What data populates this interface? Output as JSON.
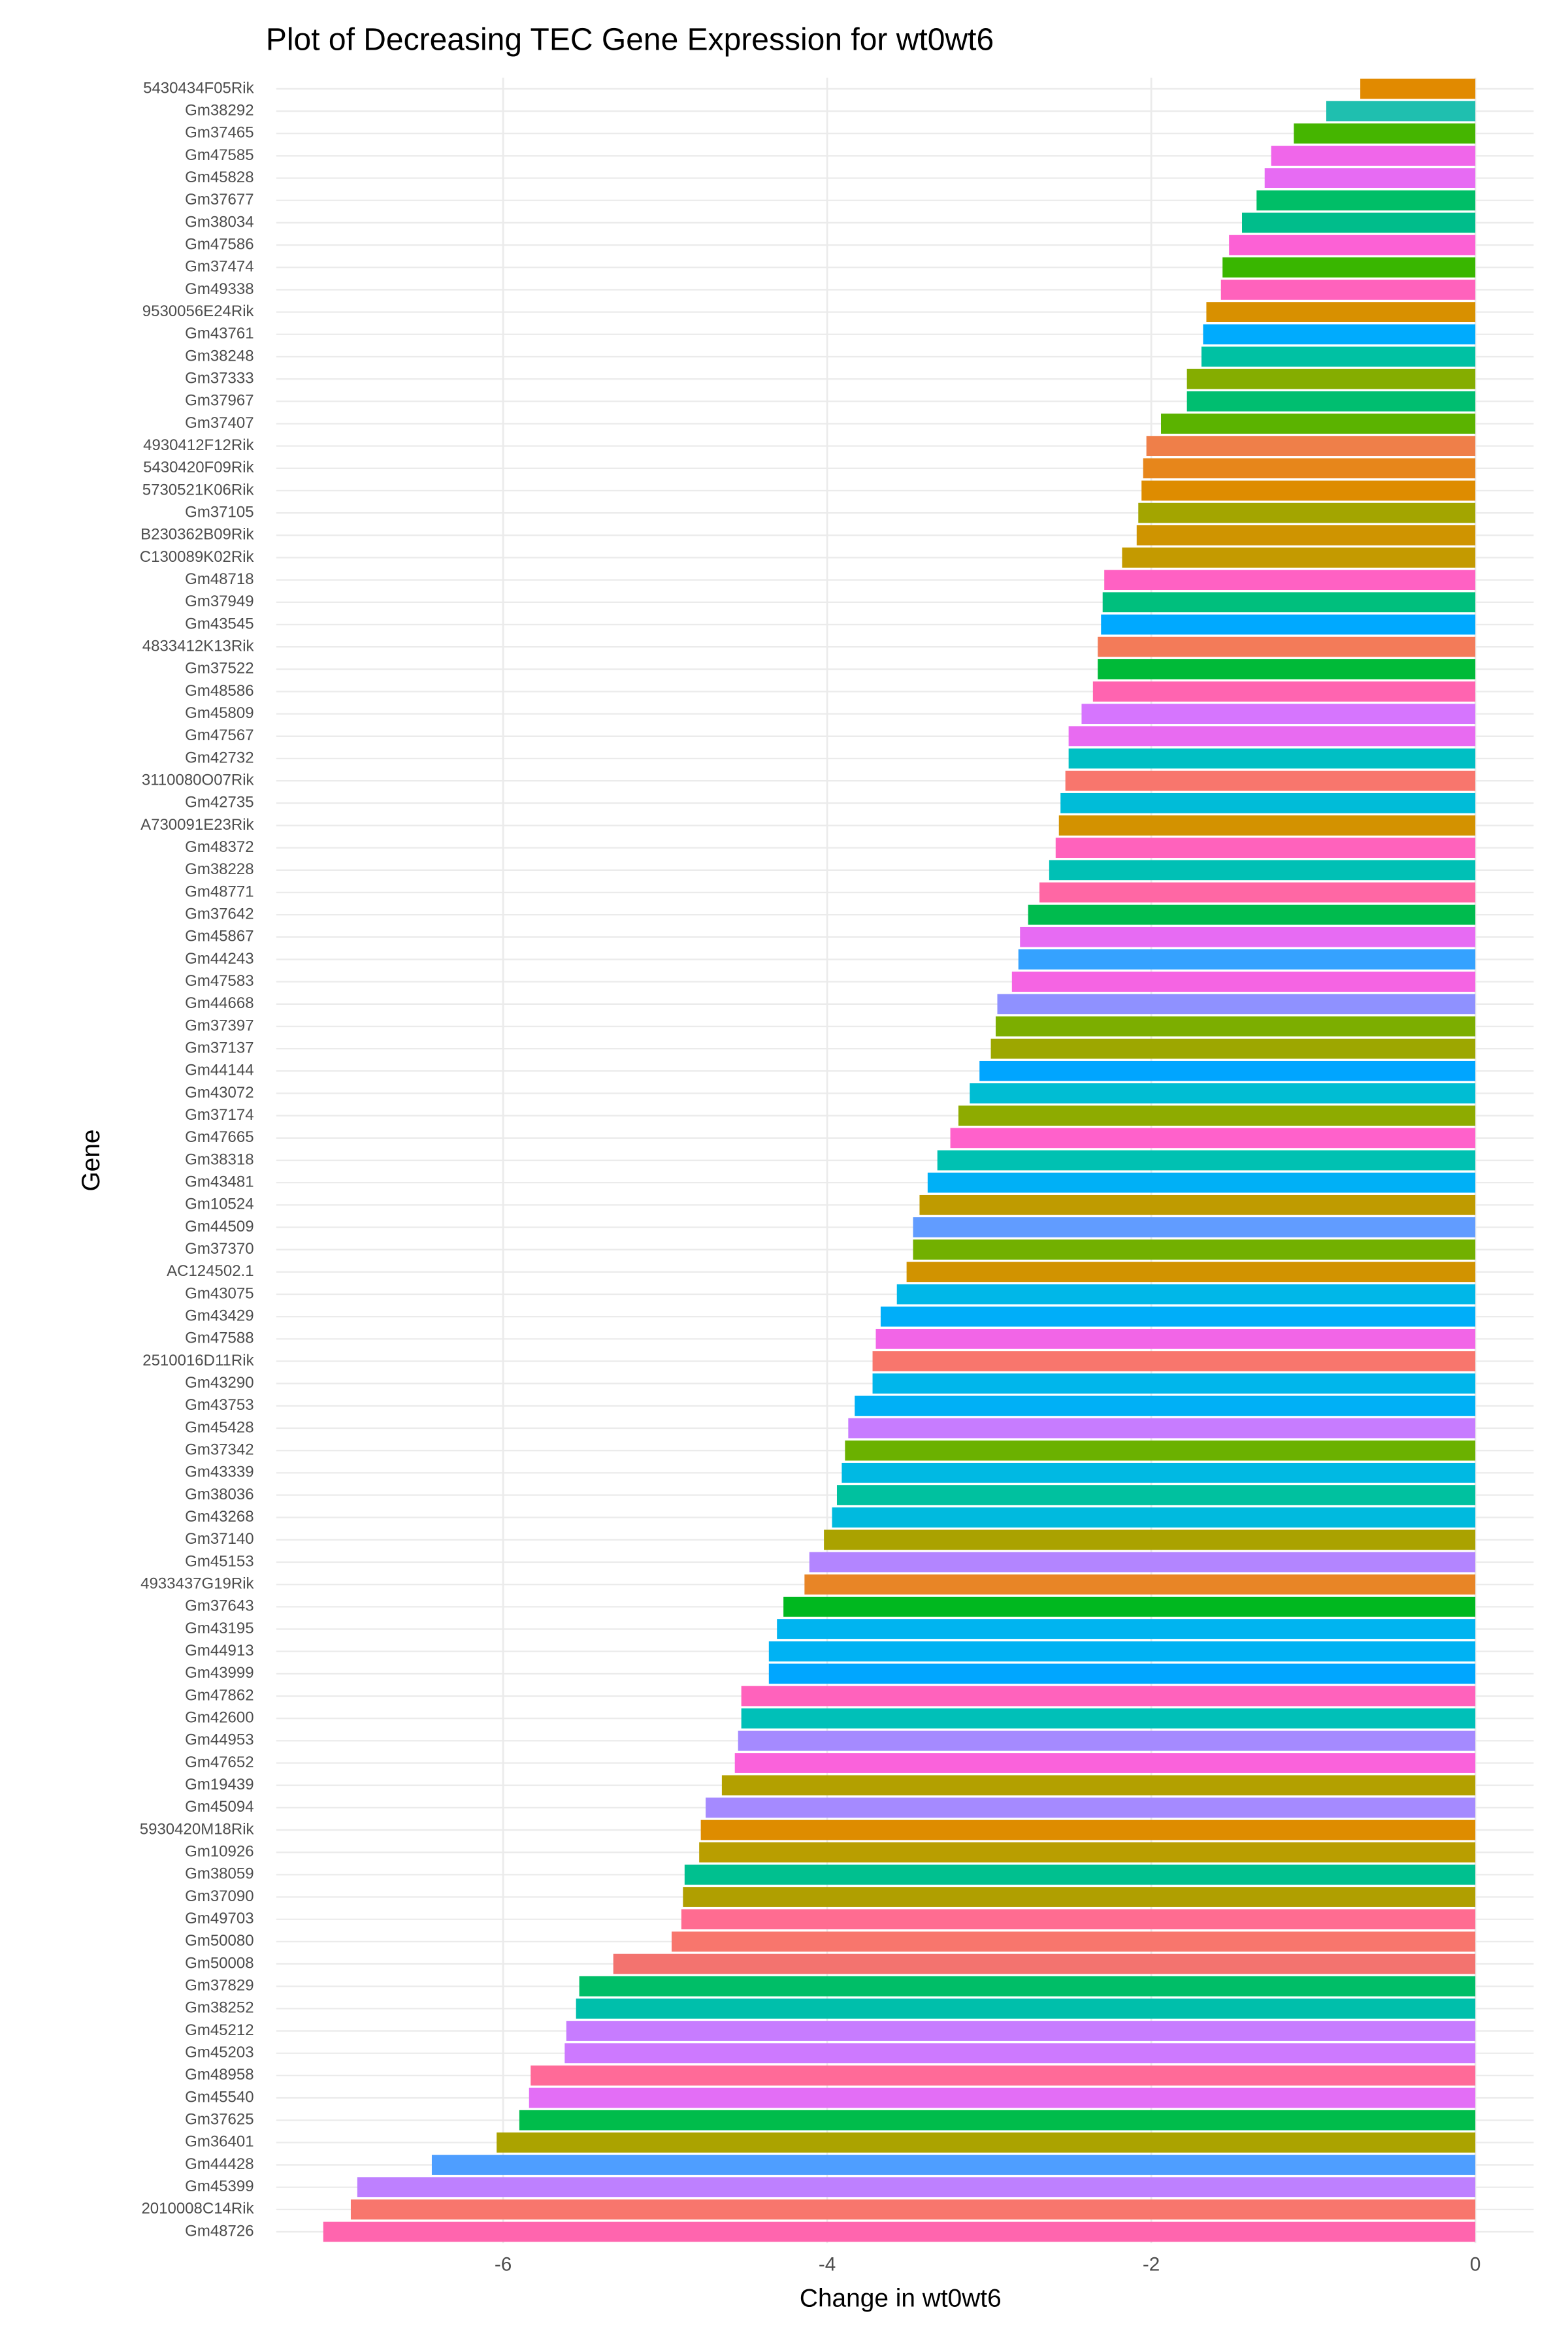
{
  "chart_data": {
    "type": "barh",
    "title": "Plot of Decreasing TEC Gene Expression for wt0wt6",
    "x_label": "Change in wt0wt6",
    "y_label": "Gene",
    "categories": [
      "5430434F05Rik",
      "Gm38292",
      "Gm37465",
      "Gm47585",
      "Gm45828",
      "Gm37677",
      "Gm38034",
      "Gm47586",
      "Gm37474",
      "Gm49338",
      "9530056E24Rik",
      "Gm43761",
      "Gm38248",
      "Gm37333",
      "Gm37967",
      "Gm37407",
      "4930412F12Rik",
      "5430420F09Rik",
      "5730521K06Rik",
      "Gm37105",
      "B230362B09Rik",
      "C130089K02Rik",
      "Gm48718",
      "Gm37949",
      "Gm43545",
      "4833412K13Rik",
      "Gm37522",
      "Gm48586",
      "Gm45809",
      "Gm47567",
      "Gm42732",
      "3110080O07Rik",
      "Gm42735",
      "A730091E23Rik",
      "Gm48372",
      "Gm38228",
      "Gm48771",
      "Gm37642",
      "Gm45867",
      "Gm44243",
      "Gm47583",
      "Gm44668",
      "Gm37397",
      "Gm37137",
      "Gm44144",
      "Gm43072",
      "Gm37174",
      "Gm47665",
      "Gm38318",
      "Gm43481",
      "Gm10524",
      "Gm44509",
      "Gm37370",
      "AC124502.1",
      "Gm43075",
      "Gm43429",
      "Gm47588",
      "2510016D11Rik",
      "Gm43290",
      "Gm43753",
      "Gm45428",
      "Gm37342",
      "Gm43339",
      "Gm38036",
      "Gm43268",
      "Gm37140",
      "Gm45153",
      "4933437G19Rik",
      "Gm37643",
      "Gm43195",
      "Gm44913",
      "Gm43999",
      "Gm47862",
      "Gm42600",
      "Gm44953",
      "Gm47652",
      "Gm19439",
      "Gm45094",
      "5930420M18Rik",
      "Gm10926",
      "Gm38059",
      "Gm37090",
      "Gm49703",
      "Gm50080",
      "Gm50008",
      "Gm37829",
      "Gm38252",
      "Gm45212",
      "Gm45203",
      "Gm48958",
      "Gm45540",
      "Gm37625",
      "Gm36401",
      "Gm44428",
      "Gm45399",
      "2010008C14Rik",
      "Gm48726"
    ],
    "values": [
      -0.71,
      -0.92,
      -1.12,
      -1.26,
      -1.3,
      -1.35,
      -1.44,
      -1.52,
      -1.56,
      -1.57,
      -1.66,
      -1.68,
      -1.69,
      -1.78,
      -1.78,
      -1.94,
      -2.03,
      -2.05,
      -2.06,
      -2.08,
      -2.09,
      -2.18,
      -2.29,
      -2.3,
      -2.31,
      -2.33,
      -2.33,
      -2.36,
      -2.43,
      -2.51,
      -2.51,
      -2.53,
      -2.56,
      -2.57,
      -2.59,
      -2.63,
      -2.69,
      -2.76,
      -2.81,
      -2.82,
      -2.86,
      -2.95,
      -2.96,
      -2.99,
      -3.06,
      -3.12,
      -3.19,
      -3.24,
      -3.32,
      -3.38,
      -3.43,
      -3.47,
      -3.47,
      -3.51,
      -3.57,
      -3.67,
      -3.7,
      -3.72,
      -3.72,
      -3.83,
      -3.87,
      -3.89,
      -3.91,
      -3.94,
      -3.97,
      -4.02,
      -4.11,
      -4.14,
      -4.27,
      -4.31,
      -4.36,
      -4.36,
      -4.53,
      -4.53,
      -4.55,
      -4.57,
      -4.65,
      -4.75,
      -4.78,
      -4.79,
      -4.88,
      -4.89,
      -4.9,
      -4.96,
      -5.32,
      -5.53,
      -5.55,
      -5.61,
      -5.62,
      -5.83,
      -5.84,
      -5.9,
      -6.04,
      -6.44,
      -6.9,
      -6.94,
      -7.11
    ],
    "colors": [
      "#E18A00",
      "#1FBFAF",
      "#45B500",
      "#F066EA",
      "#E76BF3",
      "#00BE67",
      "#00BD8B",
      "#FC61D5",
      "#39B600",
      "#FF62BC",
      "#D89000",
      "#00ABFD",
      "#00C1A3",
      "#85AD00",
      "#00BE70",
      "#5BB300",
      "#EF7F49",
      "#E7861B",
      "#DE8C00",
      "#A3A500",
      "#CF9400",
      "#C49A00",
      "#FF61C3",
      "#00BF7D",
      "#00A9FF",
      "#F37B59",
      "#00BA38",
      "#FF64B0",
      "#D675FE",
      "#E86BF1",
      "#00BFC4",
      "#F8766D",
      "#00BCD8",
      "#D39200",
      "#FF62BC",
      "#00C0B5",
      "#FF67A4",
      "#00BB4E",
      "#E76BF3",
      "#35A2FF",
      "#F564E3",
      "#8F91FF",
      "#7CAE00",
      "#9DA700",
      "#00A5FF",
      "#00BDD3",
      "#8EAB00",
      "#FF61CB",
      "#00C1B2",
      "#00B0F6",
      "#BF9B00",
      "#619CFF",
      "#72B000",
      "#D19300",
      "#00B7E8",
      "#00AEF9",
      "#F265E7",
      "#F8766D",
      "#00B6EB",
      "#00B0F6",
      "#C77CFF",
      "#6BB100",
      "#00B9E3",
      "#00C19F",
      "#00BADE",
      "#AAA200",
      "#B385FF",
      "#E88526",
      "#00B81F",
      "#00B4F0",
      "#00B2F3",
      "#00A6FF",
      "#FF62BC",
      "#00C0B8",
      "#A58AFF",
      "#FA62DB",
      "#B3A000",
      "#A58AFF",
      "#DE8C00",
      "#B99E00",
      "#00C08F",
      "#B09F00",
      "#FF6C91",
      "#F8766D",
      "#F3736F",
      "#00BE67",
      "#00BFAB",
      "#C77CFF",
      "#CD79FF",
      "#FF6A98",
      "#E36EF6",
      "#00BC4B",
      "#ABA300",
      "#4E9EFF",
      "#BE80FF",
      "#F8766D",
      "#FF65AE"
    ],
    "xlim": [
      -7.4,
      0.36
    ],
    "xticks": [
      -6,
      -4,
      -2,
      0
    ],
    "grid": true
  }
}
